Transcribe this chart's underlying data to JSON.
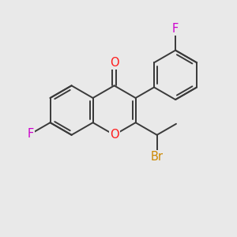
{
  "background_color": "#e9e9e9",
  "bond_color": "#3a3a3a",
  "bond_width": 1.4,
  "atom_colors": {
    "O": "#ff1a1a",
    "F": "#cc00cc",
    "Br": "#cc8800"
  },
  "font_size": 10.5,
  "fig_size": [
    3.0,
    3.0
  ],
  "dpi": 100
}
